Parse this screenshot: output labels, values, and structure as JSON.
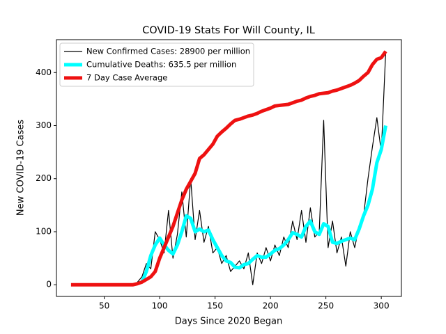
{
  "chart_data": {
    "type": "line",
    "title": "COVID-19 Stats For Will County, IL",
    "xlabel": "Days Since 2020 Began",
    "ylabel": "New COVID-19 Cases",
    "xlim": [
      6.85,
      318.15
    ],
    "ylim": [
      -22,
      462
    ],
    "xticks": [
      50,
      100,
      150,
      200,
      250,
      300
    ],
    "yticks": [
      0,
      100,
      200,
      300,
      400
    ],
    "legend": "upper left",
    "x": [
      20,
      24,
      28,
      32,
      36,
      40,
      44,
      48,
      52,
      56,
      60,
      64,
      68,
      72,
      76,
      80,
      84,
      88,
      92,
      96,
      100,
      104,
      108,
      112,
      116,
      120,
      124,
      128,
      132,
      136,
      140,
      144,
      148,
      152,
      156,
      160,
      164,
      168,
      172,
      176,
      180,
      184,
      188,
      192,
      196,
      200,
      204,
      208,
      212,
      216,
      220,
      224,
      228,
      232,
      236,
      240,
      244,
      248,
      252,
      256,
      260,
      264,
      268,
      272,
      276,
      280,
      284,
      288,
      292,
      296,
      300,
      304
    ],
    "series": [
      {
        "name": "New Confirmed Cases: 28900 per million",
        "color": "#000000",
        "values": [
          null,
          null,
          null,
          null,
          null,
          null,
          null,
          null,
          null,
          null,
          null,
          null,
          null,
          null,
          null,
          5,
          15,
          40,
          30,
          100,
          85,
          60,
          140,
          50,
          95,
          175,
          90,
          200,
          85,
          140,
          80,
          110,
          60,
          70,
          40,
          55,
          25,
          35,
          45,
          30,
          60,
          0,
          60,
          40,
          70,
          45,
          75,
          55,
          90,
          70,
          120,
          85,
          140,
          80,
          145,
          90,
          100,
          310,
          70,
          120,
          60,
          90,
          35,
          100,
          70,
          110,
          130,
          200,
          260,
          315,
          250,
          440
        ]
      },
      {
        "name": "Cumulative Deaths: 635.5 per million",
        "color": "#00ffff",
        "values": [
          null,
          null,
          null,
          null,
          null,
          null,
          null,
          null,
          null,
          null,
          null,
          null,
          null,
          null,
          null,
          null,
          5,
          25,
          55,
          75,
          88,
          75,
          65,
          58,
          75,
          100,
          130,
          125,
          100,
          105,
          100,
          103,
          85,
          70,
          55,
          45,
          42,
          33,
          32,
          38,
          40,
          48,
          55,
          52,
          52,
          58,
          65,
          68,
          75,
          85,
          98,
          95,
          90,
          110,
          120,
          100,
          95,
          115,
          110,
          80,
          78,
          82,
          85,
          88,
          85,
          105,
          130,
          150,
          180,
          230,
          255,
          300
        ]
      },
      {
        "name": "7 Day Case Average",
        "color": "#ee1111",
        "values": [
          0,
          0,
          0,
          0,
          0,
          0,
          0,
          0,
          0,
          0,
          0,
          0,
          0,
          0,
          0,
          2,
          5,
          10,
          15,
          25,
          50,
          70,
          90,
          110,
          135,
          160,
          180,
          195,
          210,
          238,
          245,
          255,
          265,
          280,
          288,
          295,
          303,
          310,
          312,
          315,
          318,
          320,
          323,
          327,
          330,
          333,
          337,
          338,
          339,
          340,
          343,
          346,
          348,
          352,
          355,
          357,
          360,
          361,
          362,
          365,
          367,
          370,
          373,
          376,
          380,
          385,
          393,
          400,
          415,
          425,
          428,
          440
        ]
      }
    ]
  }
}
